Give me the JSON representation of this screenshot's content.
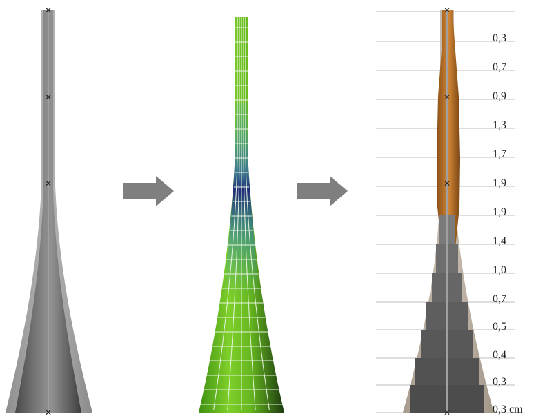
{
  "colors": {
    "gray_dark": "#555555",
    "gray_mid": "#8c8c8c",
    "gray_light": "#b8b8b8",
    "green": "#6fc21f",
    "blue": "#2b4fa8",
    "orange": "#b8722c",
    "arrow": "#7f7f7f"
  },
  "panels": {
    "left": "original-geometry",
    "middle": "fea-mesh-result",
    "right": "optimized-thickness"
  },
  "thickness_labels": [
    "0,3",
    "0,7",
    "0,9",
    "1,3",
    "1,7",
    "1,9",
    "1,9",
    "1,4",
    "1,0",
    "0,7",
    "0,5",
    "0,4",
    "0,3",
    "0,3 cm"
  ]
}
